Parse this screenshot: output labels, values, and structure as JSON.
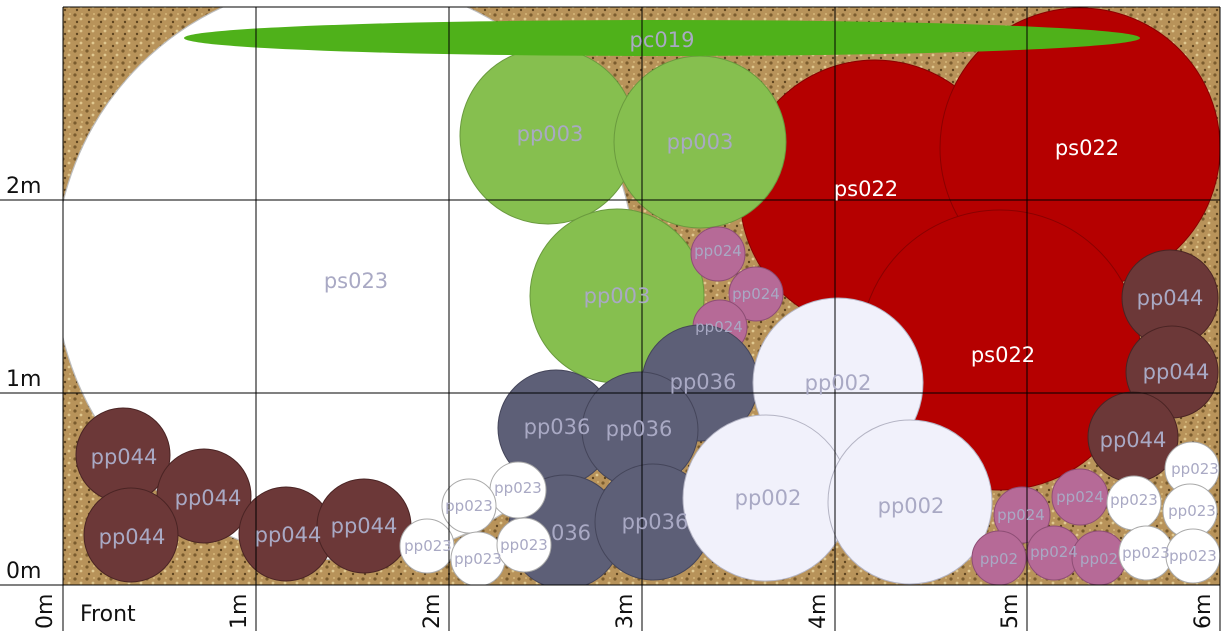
{
  "plan": {
    "y_axis_labels": [
      "2m",
      "1m",
      "0m"
    ],
    "x_axis_labels": [
      "0m",
      "1m",
      "2m",
      "3m",
      "4m",
      "5m",
      "6m"
    ],
    "front_label": "Front",
    "colors": {
      "ground": "#b8935a",
      "pc019": "#4fb11a",
      "pp003": "#86bf4f",
      "ps022": "#b50000",
      "ps023": "#ffffff",
      "pp024": "#b66a97",
      "pp036": "#5d5f77",
      "pp002": "#f1f1fb",
      "pp044": "#6c3838",
      "grid": "#000000"
    }
  },
  "labels": {
    "pc019": "pc019",
    "pp003": "pp003",
    "ps022": "ps022",
    "ps023": "ps023",
    "pp024": "pp024",
    "pp036": "pp036",
    "pp002": "pp002",
    "pp044": "pp044",
    "pp023": "pp023",
    "pp036_partial": "036",
    "pp023_partial": "pp02",
    "pp024_partial": "pp02"
  }
}
